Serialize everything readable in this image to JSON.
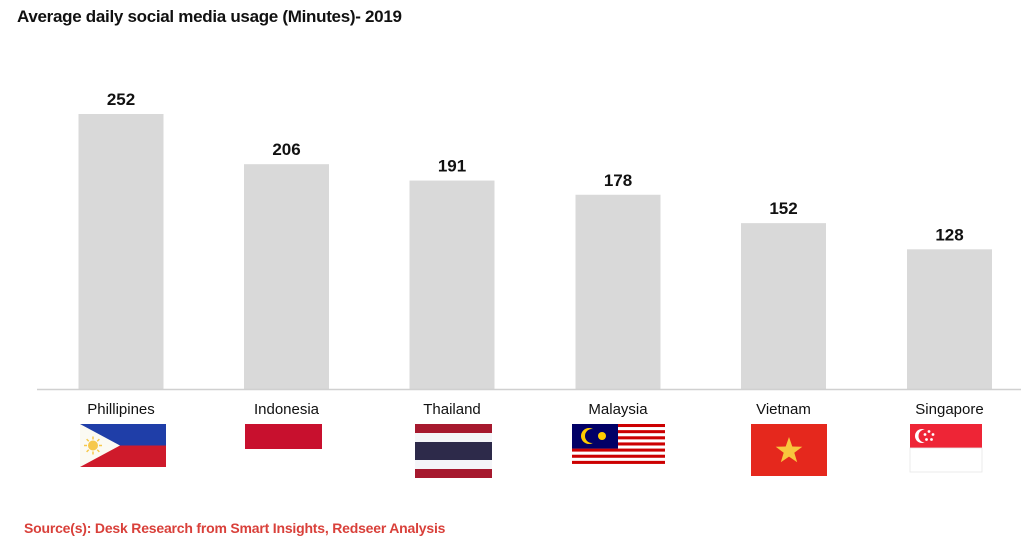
{
  "chart_data": {
    "type": "bar",
    "title": "Average daily social media usage (Minutes)- 2019",
    "xlabel": "",
    "ylabel": "",
    "ylim": [
      0,
      260
    ],
    "grid": false,
    "categories": [
      "Phillipines",
      "Indonesia",
      "Thailand",
      "Malaysia",
      "Vietnam",
      "Singapore"
    ],
    "values": [
      252,
      206,
      191,
      178,
      152,
      128
    ],
    "data_labels": [
      "252",
      "206",
      "191",
      "178",
      "152",
      "128"
    ],
    "flags": [
      "philippines-flag",
      "indonesia-flag",
      "thailand-flag",
      "malaysia-flag",
      "vietnam-flag",
      "singapore-flag"
    ],
    "bar_color": "#d9d9d9"
  },
  "footer": {
    "source": "Source(s): Desk Research from Smart Insights, Redseer Analysis"
  },
  "colors": {
    "source_text": "#d9403a",
    "axis": "#d0d0d0"
  }
}
